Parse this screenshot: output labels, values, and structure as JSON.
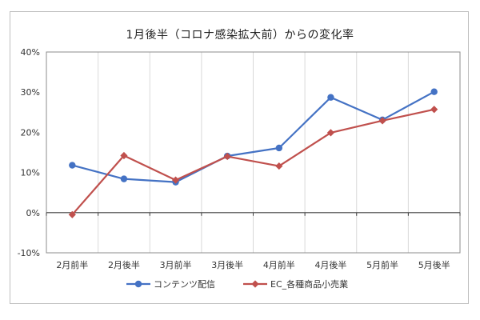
{
  "chart_data": {
    "type": "line",
    "title": "1月後半（コロナ感染拡大前）からの変化率",
    "xlabel": "",
    "ylabel": "",
    "categories": [
      "2月前半",
      "2月後半",
      "3月前半",
      "3月後半",
      "4月前半",
      "4月後半",
      "5月前半",
      "5月後半"
    ],
    "ylim": [
      -10,
      40
    ],
    "yticks": [
      -10,
      0,
      10,
      20,
      30,
      40
    ],
    "ytick_labels": [
      "-10%",
      "0%",
      "10%",
      "20%",
      "30%",
      "40%"
    ],
    "grid": "vertical",
    "legend_position": "bottom",
    "series": [
      {
        "name": "コンテンツ配信",
        "color": "#4472c4",
        "marker": "circle",
        "values": [
          11.8,
          8.4,
          7.6,
          14.1,
          16.1,
          28.7,
          23.1,
          30.1
        ]
      },
      {
        "name": "EC_各種商品小売業",
        "color": "#c0504d",
        "marker": "diamond",
        "values": [
          -0.5,
          14.2,
          8.1,
          14.0,
          11.6,
          19.9,
          22.9,
          25.7
        ]
      }
    ]
  }
}
